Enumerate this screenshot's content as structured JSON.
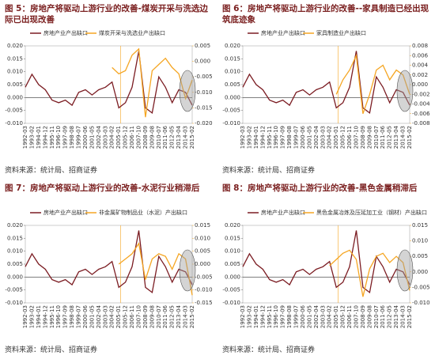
{
  "chart_data": [
    {
      "type": "line",
      "title": "图 5：房地产将驱动上游行业的改善-煤炭开采与洗选边际已出现改善",
      "categories": [
        "1992-03",
        "1993-02",
        "1994-01",
        "1994-12",
        "1995-11",
        "1996-10",
        "1997-09",
        "1998-08",
        "1999-07",
        "2000-06",
        "2001-05",
        "2002-04",
        "2003-03",
        "2004-02",
        "2005-01",
        "2005-12",
        "2006-11",
        "2007-10",
        "2008-09",
        "2009-08",
        "2010-07",
        "2011-06",
        "2012-05",
        "2013-04",
        "2014-03",
        "2015-02"
      ],
      "series": [
        {
          "name": "房地产业产出缺口",
          "color": "#7b1c22",
          "values": [
            0.004,
            0.009,
            0.005,
            0.003,
            -0.001,
            -0.002,
            -0.001,
            -0.003,
            0.002,
            0.003,
            0.001,
            0.003,
            0.004,
            0.006,
            -0.004,
            -0.002,
            0.004,
            0.018,
            -0.004,
            -0.006,
            0.008,
            0.004,
            -0.002,
            0.003,
            0.002,
            -0.003
          ]
        },
        {
          "name": "煤炭开采与洗选业产出缺口",
          "color": "#f5a623",
          "axis": "y2",
          "values": [
            null,
            null,
            null,
            null,
            null,
            null,
            null,
            null,
            null,
            null,
            null,
            null,
            null,
            -0.002,
            -0.004,
            -0.003,
            0.002,
            0.004,
            -0.018,
            -0.003,
            -0.001,
            0.001,
            -0.002,
            -0.004,
            -0.012,
            -0.006
          ]
        }
      ],
      "ylim": [
        -0.01,
        0.02
      ],
      "yticks": [
        {
          "value": -0.01,
          "label": "-0.010"
        },
        {
          "value": -0.005,
          "label": "-0.005"
        },
        {
          "value": 0,
          "label": "0.000"
        },
        {
          "value": 0.005,
          "label": "0.005"
        },
        {
          "value": 0.01,
          "label": "0.010"
        },
        {
          "value": 0.015,
          "label": "0.015"
        },
        {
          "value": 0.02,
          "label": "0.020"
        }
      ],
      "y2lim": [
        -0.02,
        0.005
      ],
      "y2ticks": [
        {
          "value": -0.02,
          "label": "-0.020"
        },
        {
          "value": -0.015,
          "label": "-0.015"
        },
        {
          "value": -0.01,
          "label": "-0.010"
        },
        {
          "value": -0.005,
          "label": "-0.005"
        },
        {
          "value": 0,
          "label": "0.000"
        },
        {
          "value": 0.005,
          "label": "0.005"
        }
      ],
      "source": "资料来源：统计局、招商证券"
    },
    {
      "type": "line",
      "title": "图 6：房地产将驱动上游行业的改善--家具制造已经出现筑底迹象",
      "categories": [
        "1992-03",
        "1993-02",
        "1994-01",
        "1994-12",
        "1995-11",
        "1996-10",
        "1997-09",
        "1998-08",
        "1999-07",
        "2000-06",
        "2001-05",
        "2002-04",
        "2003-03",
        "2004-02",
        "2005-01",
        "2005-12",
        "2006-11",
        "2007-10",
        "2008-09",
        "2009-08",
        "2010-07",
        "2011-06",
        "2012-05",
        "2013-04",
        "2014-03",
        "2015-02"
      ],
      "series": [
        {
          "name": "房地产业产出缺口",
          "color": "#7b1c22",
          "values": [
            0.004,
            0.009,
            0.005,
            0.003,
            -0.001,
            -0.002,
            -0.001,
            -0.003,
            0.002,
            0.003,
            0.001,
            0.003,
            0.004,
            0.006,
            -0.004,
            -0.002,
            0.004,
            0.018,
            -0.004,
            -0.006,
            0.008,
            0.004,
            -0.002,
            0.003,
            0.002,
            -0.003
          ]
        },
        {
          "name": "家具制造业产出缺口",
          "color": "#f5a623",
          "axis": "y2",
          "values": [
            null,
            null,
            null,
            null,
            null,
            null,
            null,
            null,
            null,
            null,
            null,
            null,
            null,
            null,
            -0.002,
            0.001,
            0.003,
            0.006,
            -0.006,
            -0.002,
            0.003,
            0.004,
            0.001,
            0.003,
            0.002,
            -0.002
          ]
        }
      ],
      "ylim": [
        -0.01,
        0.02
      ],
      "yticks": [
        {
          "value": -0.01,
          "label": "-0.010"
        },
        {
          "value": -0.005,
          "label": "-0.005"
        },
        {
          "value": 0,
          "label": "0.000"
        },
        {
          "value": 0.005,
          "label": "0.005"
        },
        {
          "value": 0.01,
          "label": "0.010"
        },
        {
          "value": 0.015,
          "label": "0.015"
        },
        {
          "value": 0.02,
          "label": "0.020"
        }
      ],
      "y2lim": [
        -0.008,
        0.008
      ],
      "y2ticks": [
        {
          "value": -0.008,
          "label": "-0.008"
        },
        {
          "value": -0.006,
          "label": "-0.006"
        },
        {
          "value": -0.004,
          "label": "-0.004"
        },
        {
          "value": -0.002,
          "label": "-0.002"
        },
        {
          "value": 0,
          "label": "0.000"
        },
        {
          "value": 0.002,
          "label": "0.002"
        },
        {
          "value": 0.004,
          "label": "0.004"
        },
        {
          "value": 0.006,
          "label": "0.006"
        },
        {
          "value": 0.008,
          "label": "0.008"
        }
      ],
      "source": "资料来源：统计局、招商证券"
    },
    {
      "type": "line",
      "title": "图 7：房地产将驱动上游行业的改善-水泥行业稍滞后",
      "categories": [
        "1992-03",
        "1993-02",
        "1994-01",
        "1994-12",
        "1995-11",
        "1996-10",
        "1997-09",
        "1998-08",
        "1999-07",
        "2000-06",
        "2001-05",
        "2002-04",
        "2003-03",
        "2004-02",
        "2005-01",
        "2005-12",
        "2006-11",
        "2007-10",
        "2008-09",
        "2009-08",
        "2010-07",
        "2011-06",
        "2012-05",
        "2013-04",
        "2014-03",
        "2015-02"
      ],
      "series": [
        {
          "name": "房地产业产出缺口",
          "color": "#7b1c22",
          "values": [
            0.004,
            0.009,
            0.005,
            0.003,
            -0.001,
            -0.002,
            -0.001,
            -0.003,
            0.002,
            0.003,
            0.001,
            0.003,
            0.004,
            0.006,
            -0.004,
            -0.002,
            0.004,
            0.018,
            -0.004,
            -0.006,
            0.008,
            0.004,
            -0.002,
            0.003,
            0.002,
            -0.003
          ]
        },
        {
          "name": "非金属矿物制品业（水泥）产出缺口",
          "color": "#f5a623",
          "axis": "y2",
          "values": [
            null,
            null,
            null,
            null,
            null,
            null,
            null,
            null,
            null,
            null,
            null,
            null,
            null,
            null,
            0,
            0.002,
            0.004,
            0.008,
            -0.006,
            0.002,
            0.004,
            0.003,
            -0.002,
            0.004,
            0.002,
            -0.012
          ]
        }
      ],
      "ylim": [
        -0.01,
        0.02
      ],
      "yticks": [
        {
          "value": -0.01,
          "label": "-0.010"
        },
        {
          "value": -0.005,
          "label": "-0.005"
        },
        {
          "value": 0,
          "label": "0.000"
        },
        {
          "value": 0.005,
          "label": "0.005"
        },
        {
          "value": 0.01,
          "label": "0.010"
        },
        {
          "value": 0.015,
          "label": "0.015"
        },
        {
          "value": 0.02,
          "label": "0.020"
        }
      ],
      "y2lim": [
        -0.015,
        0.015
      ],
      "y2ticks": [
        {
          "value": -0.015,
          "label": "-0.015"
        },
        {
          "value": -0.01,
          "label": "-0.010"
        },
        {
          "value": -0.005,
          "label": "-0.005"
        },
        {
          "value": 0,
          "label": "0.000"
        },
        {
          "value": 0.005,
          "label": "0.005"
        },
        {
          "value": 0.01,
          "label": "0.010"
        },
        {
          "value": 0.015,
          "label": "0.015"
        }
      ],
      "source": "资料来源：统计局、招商证券"
    },
    {
      "type": "line",
      "title": "图 8：房地产将驱动上游行业的改善-黑色金属稍滞后",
      "categories": [
        "1992-03",
        "1993-02",
        "1994-01",
        "1994-12",
        "1995-11",
        "1996-10",
        "1997-09",
        "1998-08",
        "1999-07",
        "2000-06",
        "2001-05",
        "2002-04",
        "2003-03",
        "2004-02",
        "2005-01",
        "2005-12",
        "2006-11",
        "2007-10",
        "2008-09",
        "2009-08",
        "2010-07",
        "2011-06",
        "2012-05",
        "2013-04",
        "2014-03",
        "2015-02"
      ],
      "series": [
        {
          "name": "房地产业产出缺口",
          "color": "#7b1c22",
          "values": [
            0.004,
            0.009,
            0.005,
            0.003,
            -0.001,
            -0.002,
            -0.001,
            -0.003,
            0.002,
            0.003,
            0.001,
            0.003,
            0.004,
            0.006,
            -0.004,
            -0.002,
            0.004,
            0.018,
            -0.004,
            -0.006,
            0.008,
            0.004,
            -0.002,
            0.003,
            0.002,
            -0.003
          ]
        },
        {
          "name": "黑色金属冶炼及压延加工业（钢材）产出缺口",
          "color": "#f5a623",
          "axis": "y2",
          "values": [
            null,
            null,
            null,
            null,
            null,
            null,
            null,
            null,
            null,
            null,
            null,
            null,
            null,
            0.002,
            0.004,
            0.006,
            0.007,
            0.004,
            -0.008,
            0.001,
            0.005,
            0.006,
            0.003,
            0.005,
            0.003,
            -0.006
          ]
        }
      ],
      "ylim": [
        -0.01,
        0.02
      ],
      "yticks": [
        {
          "value": -0.01,
          "label": "-0.010"
        },
        {
          "value": -0.005,
          "label": "-0.005"
        },
        {
          "value": 0,
          "label": "0.000"
        },
        {
          "value": 0.005,
          "label": "0.005"
        },
        {
          "value": 0.01,
          "label": "0.010"
        },
        {
          "value": 0.015,
          "label": "0.015"
        },
        {
          "value": 0.02,
          "label": "0.020"
        }
      ],
      "y2lim": [
        -0.01,
        0.015
      ],
      "y2ticks": [
        {
          "value": -0.01,
          "label": "-0.010"
        },
        {
          "value": -0.005,
          "label": "-0.005"
        },
        {
          "value": 0,
          "label": "0.000"
        },
        {
          "value": 0.005,
          "label": "0.005"
        },
        {
          "value": 0.01,
          "label": "0.010"
        },
        {
          "value": 0.015,
          "label": "0.015"
        }
      ],
      "source": "资料来源：统计局、招商证券"
    }
  ]
}
